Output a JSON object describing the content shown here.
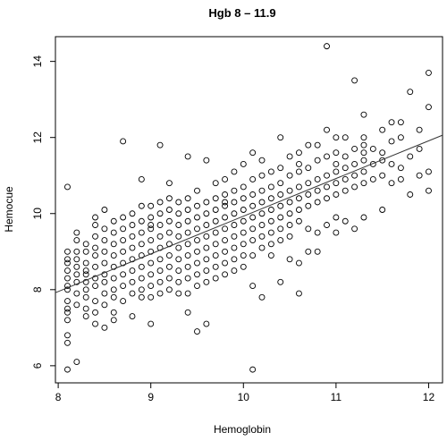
{
  "chart_data": {
    "type": "scatter",
    "title": "Hgb 8 – 11.9",
    "xlabel": "Hemoglobin",
    "ylabel": "Hemocue",
    "xlim": [
      7.97,
      12.15
    ],
    "ylim": [
      5.55,
      14.65
    ],
    "xticks": [
      8,
      9,
      10,
      11,
      12
    ],
    "yticks": [
      6,
      8,
      10,
      12,
      14
    ],
    "regression_line": {
      "x": [
        7.97,
        12.15
      ],
      "y": [
        7.92,
        12.06
      ]
    },
    "points": [
      [
        8.1,
        10.7
      ],
      [
        8.1,
        5.9
      ],
      [
        8.1,
        6.6
      ],
      [
        8.1,
        6.8
      ],
      [
        8.1,
        7.2
      ],
      [
        8.1,
        7.4
      ],
      [
        8.1,
        7.5
      ],
      [
        8.1,
        7.7
      ],
      [
        8.1,
        8.0
      ],
      [
        8.1,
        8.1
      ],
      [
        8.1,
        8.3
      ],
      [
        8.1,
        8.5
      ],
      [
        8.1,
        8.7
      ],
      [
        8.1,
        8.8
      ],
      [
        8.1,
        9.0
      ],
      [
        8.2,
        6.1
      ],
      [
        8.2,
        7.6
      ],
      [
        8.2,
        7.9
      ],
      [
        8.2,
        8.2
      ],
      [
        8.2,
        8.4
      ],
      [
        8.2,
        8.6
      ],
      [
        8.2,
        8.8
      ],
      [
        8.2,
        9.0
      ],
      [
        8.2,
        9.3
      ],
      [
        8.2,
        9.5
      ],
      [
        8.3,
        7.3
      ],
      [
        8.3,
        7.5
      ],
      [
        8.3,
        7.8
      ],
      [
        8.3,
        8.0
      ],
      [
        8.3,
        8.2
      ],
      [
        8.3,
        8.4
      ],
      [
        8.3,
        8.5
      ],
      [
        8.3,
        8.7
      ],
      [
        8.3,
        9.0
      ],
      [
        8.3,
        9.2
      ],
      [
        8.4,
        7.1
      ],
      [
        8.4,
        7.4
      ],
      [
        8.4,
        7.7
      ],
      [
        8.4,
        8.1
      ],
      [
        8.4,
        8.3
      ],
      [
        8.4,
        8.6
      ],
      [
        8.4,
        8.9
      ],
      [
        8.4,
        9.1
      ],
      [
        8.4,
        9.4
      ],
      [
        8.4,
        9.7
      ],
      [
        8.4,
        9.9
      ],
      [
        8.5,
        7.0
      ],
      [
        8.5,
        7.6
      ],
      [
        8.5,
        7.9
      ],
      [
        8.5,
        8.2
      ],
      [
        8.5,
        8.4
      ],
      [
        8.5,
        8.7
      ],
      [
        8.5,
        9.0
      ],
      [
        8.5,
        9.3
      ],
      [
        8.5,
        9.6
      ],
      [
        8.5,
        10.1
      ],
      [
        8.6,
        7.2
      ],
      [
        8.6,
        7.4
      ],
      [
        8.6,
        7.8
      ],
      [
        8.6,
        8.0
      ],
      [
        8.6,
        8.3
      ],
      [
        8.6,
        8.6
      ],
      [
        8.6,
        8.9
      ],
      [
        8.6,
        9.2
      ],
      [
        8.6,
        9.5
      ],
      [
        8.6,
        9.8
      ],
      [
        8.7,
        7.7
      ],
      [
        8.7,
        8.1
      ],
      [
        8.7,
        8.4
      ],
      [
        8.7,
        8.7
      ],
      [
        8.7,
        9.0
      ],
      [
        8.7,
        9.3
      ],
      [
        8.7,
        9.6
      ],
      [
        8.7,
        9.9
      ],
      [
        8.7,
        11.9
      ],
      [
        8.8,
        7.3
      ],
      [
        8.8,
        7.9
      ],
      [
        8.8,
        8.2
      ],
      [
        8.8,
        8.5
      ],
      [
        8.8,
        8.8
      ],
      [
        8.8,
        9.1
      ],
      [
        8.8,
        9.4
      ],
      [
        8.8,
        9.7
      ],
      [
        8.8,
        10.0
      ],
      [
        8.9,
        7.8
      ],
      [
        8.9,
        8.0
      ],
      [
        8.9,
        8.3
      ],
      [
        8.9,
        8.6
      ],
      [
        8.9,
        8.9
      ],
      [
        8.9,
        9.2
      ],
      [
        8.9,
        9.5
      ],
      [
        8.9,
        9.8
      ],
      [
        8.9,
        10.2
      ],
      [
        8.9,
        10.9
      ],
      [
        9.0,
        7.1
      ],
      [
        9.0,
        7.8
      ],
      [
        9.0,
        8.1
      ],
      [
        9.0,
        8.4
      ],
      [
        9.0,
        8.7
      ],
      [
        9.0,
        9.0
      ],
      [
        9.0,
        9.3
      ],
      [
        9.0,
        9.6
      ],
      [
        9.0,
        9.9
      ],
      [
        9.0,
        10.2
      ],
      [
        9.1,
        7.9
      ],
      [
        9.1,
        8.2
      ],
      [
        9.1,
        8.5
      ],
      [
        9.1,
        8.8
      ],
      [
        9.1,
        9.1
      ],
      [
        9.1,
        9.4
      ],
      [
        9.1,
        9.7
      ],
      [
        9.1,
        10.0
      ],
      [
        9.1,
        10.3
      ],
      [
        9.1,
        11.8
      ],
      [
        9.2,
        8.0
      ],
      [
        9.2,
        8.3
      ],
      [
        9.2,
        8.6
      ],
      [
        9.2,
        8.9
      ],
      [
        9.2,
        9.2
      ],
      [
        9.2,
        9.5
      ],
      [
        9.2,
        9.8
      ],
      [
        9.2,
        10.1
      ],
      [
        9.2,
        10.4
      ],
      [
        9.2,
        10.8
      ],
      [
        9.3,
        7.9
      ],
      [
        9.3,
        8.2
      ],
      [
        9.3,
        8.5
      ],
      [
        9.3,
        8.8
      ],
      [
        9.3,
        9.1
      ],
      [
        9.3,
        9.4
      ],
      [
        9.3,
        9.7
      ],
      [
        9.3,
        10.0
      ],
      [
        9.3,
        10.3
      ],
      [
        9.4,
        7.4
      ],
      [
        9.4,
        7.9
      ],
      [
        9.4,
        8.3
      ],
      [
        9.4,
        8.6
      ],
      [
        9.4,
        8.9
      ],
      [
        9.4,
        9.2
      ],
      [
        9.4,
        9.5
      ],
      [
        9.4,
        9.8
      ],
      [
        9.4,
        10.1
      ],
      [
        9.4,
        10.4
      ],
      [
        9.4,
        11.5
      ],
      [
        9.5,
        6.9
      ],
      [
        9.5,
        8.1
      ],
      [
        9.5,
        8.4
      ],
      [
        9.5,
        8.7
      ],
      [
        9.5,
        9.0
      ],
      [
        9.5,
        9.3
      ],
      [
        9.5,
        9.6
      ],
      [
        9.5,
        9.9
      ],
      [
        9.5,
        10.2
      ],
      [
        9.5,
        10.6
      ],
      [
        9.6,
        7.1
      ],
      [
        9.6,
        8.2
      ],
      [
        9.6,
        8.5
      ],
      [
        9.6,
        8.8
      ],
      [
        9.6,
        9.1
      ],
      [
        9.6,
        9.4
      ],
      [
        9.6,
        9.7
      ],
      [
        9.6,
        10.0
      ],
      [
        9.6,
        10.3
      ],
      [
        9.6,
        11.4
      ],
      [
        9.7,
        8.3
      ],
      [
        9.7,
        8.6
      ],
      [
        9.7,
        8.9
      ],
      [
        9.7,
        9.2
      ],
      [
        9.7,
        9.5
      ],
      [
        9.7,
        9.8
      ],
      [
        9.7,
        10.1
      ],
      [
        9.7,
        10.4
      ],
      [
        9.7,
        10.8
      ],
      [
        9.8,
        8.4
      ],
      [
        9.8,
        8.7
      ],
      [
        9.8,
        9.0
      ],
      [
        9.8,
        9.3
      ],
      [
        9.8,
        9.6
      ],
      [
        9.8,
        9.9
      ],
      [
        9.8,
        10.2
      ],
      [
        9.8,
        10.5
      ],
      [
        9.8,
        10.9
      ],
      [
        9.9,
        8.5
      ],
      [
        9.9,
        8.8
      ],
      [
        9.9,
        9.1
      ],
      [
        9.9,
        9.4
      ],
      [
        9.9,
        9.7
      ],
      [
        9.9,
        10.0
      ],
      [
        9.9,
        10.3
      ],
      [
        9.9,
        10.6
      ],
      [
        9.9,
        11.1
      ],
      [
        10.0,
        8.6
      ],
      [
        10.0,
        8.9
      ],
      [
        10.0,
        9.2
      ],
      [
        10.0,
        9.5
      ],
      [
        10.0,
        9.8
      ],
      [
        10.0,
        10.1
      ],
      [
        10.0,
        10.4
      ],
      [
        10.0,
        10.7
      ],
      [
        10.0,
        11.3
      ],
      [
        10.1,
        5.9
      ],
      [
        10.1,
        8.1
      ],
      [
        10.1,
        8.9
      ],
      [
        10.1,
        9.3
      ],
      [
        10.1,
        9.6
      ],
      [
        10.1,
        9.9
      ],
      [
        10.1,
        10.2
      ],
      [
        10.1,
        10.5
      ],
      [
        10.1,
        10.9
      ],
      [
        10.1,
        11.6
      ],
      [
        10.2,
        7.8
      ],
      [
        10.2,
        9.1
      ],
      [
        10.2,
        9.4
      ],
      [
        10.2,
        9.7
      ],
      [
        10.2,
        10.0
      ],
      [
        10.2,
        10.3
      ],
      [
        10.2,
        10.6
      ],
      [
        10.2,
        11.0
      ],
      [
        10.2,
        11.4
      ],
      [
        10.3,
        8.9
      ],
      [
        10.3,
        9.2
      ],
      [
        10.3,
        9.5
      ],
      [
        10.3,
        9.8
      ],
      [
        10.3,
        10.1
      ],
      [
        10.3,
        10.4
      ],
      [
        10.3,
        10.7
      ],
      [
        10.3,
        11.1
      ],
      [
        10.4,
        8.2
      ],
      [
        10.4,
        9.3
      ],
      [
        10.4,
        9.6
      ],
      [
        10.4,
        9.9
      ],
      [
        10.4,
        10.2
      ],
      [
        10.4,
        10.5
      ],
      [
        10.4,
        10.8
      ],
      [
        10.4,
        11.2
      ],
      [
        10.4,
        12.0
      ],
      [
        10.5,
        8.8
      ],
      [
        10.5,
        9.4
      ],
      [
        10.5,
        9.7
      ],
      [
        10.5,
        10.0
      ],
      [
        10.5,
        10.3
      ],
      [
        10.5,
        10.6
      ],
      [
        10.5,
        11.0
      ],
      [
        10.5,
        11.5
      ],
      [
        10.6,
        7.9
      ],
      [
        10.6,
        8.7
      ],
      [
        10.6,
        9.8
      ],
      [
        10.6,
        10.1
      ],
      [
        10.6,
        10.4
      ],
      [
        10.6,
        10.7
      ],
      [
        10.6,
        11.1
      ],
      [
        10.6,
        11.6
      ],
      [
        10.7,
        9.0
      ],
      [
        10.7,
        9.6
      ],
      [
        10.7,
        10.2
      ],
      [
        10.7,
        10.5
      ],
      [
        10.7,
        10.8
      ],
      [
        10.7,
        11.2
      ],
      [
        10.7,
        11.8
      ],
      [
        10.8,
        9.0
      ],
      [
        10.8,
        9.5
      ],
      [
        10.8,
        10.3
      ],
      [
        10.8,
        10.6
      ],
      [
        10.8,
        10.9
      ],
      [
        10.8,
        11.4
      ],
      [
        10.8,
        11.8
      ],
      [
        10.9,
        9.7
      ],
      [
        10.9,
        10.4
      ],
      [
        10.9,
        10.7
      ],
      [
        10.9,
        11.0
      ],
      [
        10.9,
        11.5
      ],
      [
        10.9,
        12.2
      ],
      [
        10.9,
        14.4
      ],
      [
        11.0,
        9.5
      ],
      [
        11.0,
        9.9
      ],
      [
        11.0,
        10.5
      ],
      [
        11.0,
        10.8
      ],
      [
        11.0,
        11.1
      ],
      [
        11.0,
        11.3
      ],
      [
        11.0,
        11.6
      ],
      [
        11.0,
        12.0
      ],
      [
        11.1,
        9.8
      ],
      [
        11.1,
        10.6
      ],
      [
        11.1,
        10.9
      ],
      [
        11.1,
        11.2
      ],
      [
        11.1,
        11.5
      ],
      [
        11.1,
        12.0
      ],
      [
        11.2,
        9.6
      ],
      [
        11.2,
        10.7
      ],
      [
        11.2,
        11.0
      ],
      [
        11.2,
        11.3
      ],
      [
        11.2,
        11.7
      ],
      [
        11.2,
        13.5
      ],
      [
        11.3,
        9.9
      ],
      [
        11.3,
        10.8
      ],
      [
        11.3,
        11.1
      ],
      [
        11.3,
        11.4
      ],
      [
        11.3,
        11.6
      ],
      [
        11.3,
        11.8
      ],
      [
        11.3,
        12.0
      ],
      [
        11.3,
        12.6
      ],
      [
        11.4,
        10.9
      ],
      [
        11.4,
        11.3
      ],
      [
        11.4,
        11.7
      ],
      [
        11.5,
        10.1
      ],
      [
        11.5,
        11.0
      ],
      [
        11.5,
        11.4
      ],
      [
        11.5,
        11.6
      ],
      [
        11.5,
        12.2
      ],
      [
        11.6,
        10.8
      ],
      [
        11.6,
        11.3
      ],
      [
        11.6,
        11.9
      ],
      [
        11.6,
        12.4
      ],
      [
        11.7,
        10.9
      ],
      [
        11.7,
        11.2
      ],
      [
        11.7,
        12.0
      ],
      [
        11.7,
        12.4
      ],
      [
        11.8,
        10.5
      ],
      [
        11.8,
        11.5
      ],
      [
        11.8,
        13.2
      ],
      [
        11.9,
        11.0
      ],
      [
        11.9,
        11.7
      ],
      [
        11.9,
        12.2
      ],
      [
        12.0,
        10.6
      ],
      [
        12.0,
        11.1
      ],
      [
        12.0,
        12.8
      ],
      [
        12.0,
        13.7
      ],
      [
        10.6,
        11.3
      ],
      [
        9.8,
        10.3
      ],
      [
        9.0,
        9.7
      ]
    ]
  }
}
